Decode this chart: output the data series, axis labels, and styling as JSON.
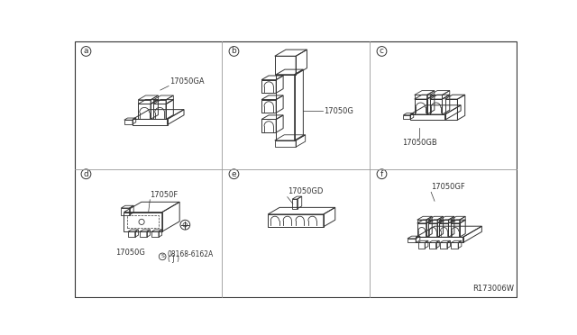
{
  "bg_color": "#ffffff",
  "line_color": "#333333",
  "grid_color": "#999999",
  "part_labels": {
    "a": "17050GA",
    "b": "17050G",
    "c": "17050GB",
    "d_top": "17050F",
    "d_bot": "17050G",
    "d_screw": "08168-6162A",
    "d_screw2": "( J )",
    "e": "17050GD",
    "f": "17050GF"
  },
  "ref_label": "R173006W",
  "font_size_label": 6.5,
  "font_size_part": 6.0,
  "font_size_ref": 6.0
}
